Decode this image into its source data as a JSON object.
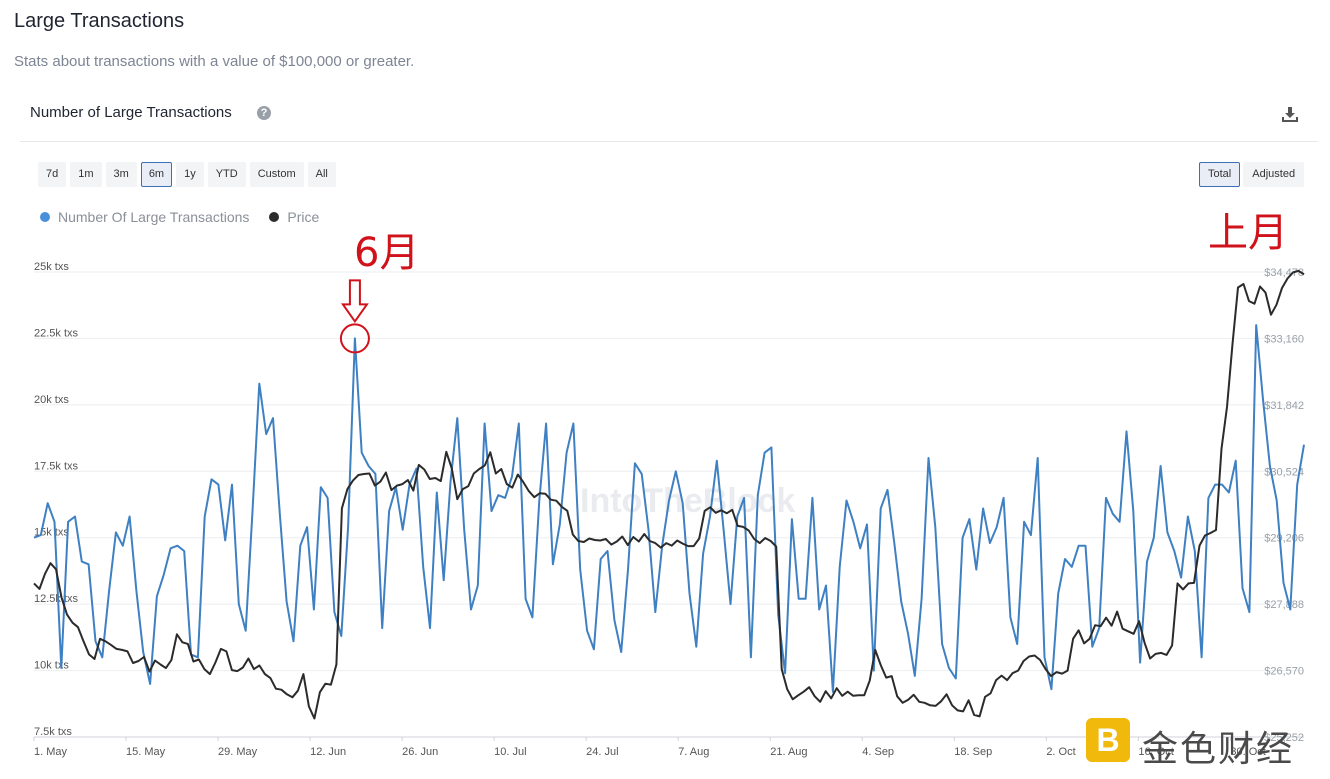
{
  "header": {
    "title": "Large Transactions",
    "subtitle": "Stats about transactions with a value of $100,000 or greater."
  },
  "card": {
    "title": "Number of Large Transactions",
    "help_symbol": "?"
  },
  "range_buttons": [
    "7d",
    "1m",
    "3m",
    "6m",
    "1y",
    "YTD",
    "Custom",
    "All"
  ],
  "range_selected": "6m",
  "mode_buttons": [
    "Total",
    "Adjusted"
  ],
  "mode_selected": "Total",
  "watermark": {
    "site": "IntoTheBlock",
    "brand": "金色财经"
  },
  "colors": {
    "transactions": "#3f80c3",
    "price": "#2b2b2b",
    "annotation": "#d0121b",
    "legend_tx_dot": "#4a90d9"
  },
  "chart_data": {
    "type": "line",
    "title": "Number of Large Transactions",
    "x_ticks": [
      "1. May",
      "15. May",
      "29. May",
      "12. Jun",
      "26. Jun",
      "10. Jul",
      "24. Jul",
      "7. Aug",
      "21. Aug",
      "4. Sep",
      "18. Sep",
      "2. Oct",
      "16. Oct",
      "30. Oct"
    ],
    "y_left_ticks": [
      "7.5k txs",
      "10k txs",
      "12.5k txs",
      "15k txs",
      "17.5k txs",
      "20k txs",
      "22.5k txs",
      "25k txs"
    ],
    "y_left_range": [
      7500,
      25000
    ],
    "y_right_ticks": [
      "$25,252",
      "$26,570",
      "$27,888",
      "$29,206",
      "$30,524",
      "$31,842",
      "$33,160",
      "$34,478"
    ],
    "y_right_range": [
      25252,
      34478
    ],
    "legend_position": "top-left",
    "grid": true,
    "annotations": [
      {
        "label": "6月",
        "near": "22 Jun"
      },
      {
        "label": "上月",
        "near": "Oct"
      }
    ],
    "series": [
      {
        "name": "Number Of Large Transactions",
        "axis": "left",
        "values": [
          15000,
          15100,
          16300,
          15600,
          10100,
          15600,
          15800,
          14100,
          14000,
          11100,
          10500,
          13000,
          15200,
          14700,
          15800,
          13000,
          10700,
          9500,
          12800,
          13600,
          14600,
          14700,
          14500,
          10600,
          10500,
          15800,
          17200,
          17000,
          14900,
          17000,
          12500,
          11500,
          16000,
          20800,
          18900,
          19500,
          15900,
          12600,
          11100,
          14700,
          15400,
          12300,
          16900,
          16500,
          12200,
          11300,
          15400,
          22500,
          18200,
          17700,
          17400,
          11600,
          16000,
          16900,
          15300,
          17000,
          17600,
          13900,
          11600,
          16700,
          13400,
          17100,
          19500,
          15300,
          12300,
          13200,
          19300,
          16000,
          16600,
          16500,
          17300,
          19300,
          12700,
          12000,
          16400,
          19300,
          14000,
          15500,
          18200,
          19300,
          13800,
          11500,
          10800,
          14200,
          14500,
          11900,
          10700,
          13800,
          17800,
          17400,
          15300,
          12200,
          14700,
          16400,
          17500,
          16300,
          12900,
          10900,
          14400,
          15800,
          17900,
          15300,
          12500,
          15800,
          16500,
          10500,
          16600,
          18200,
          18400,
          12100,
          9900,
          15700,
          12700,
          12700,
          16500,
          12300,
          13200,
          9200,
          13900,
          16400,
          15600,
          14600,
          15500,
          10000,
          16100,
          16800,
          14800,
          12600,
          11400,
          9800,
          12700,
          18000,
          15400,
          11000,
          10100,
          9700,
          15000,
          15700,
          13800,
          16100,
          14800,
          15400,
          16500,
          12000,
          11000,
          15600,
          15100,
          18000,
          10500,
          9300,
          12900,
          14200,
          13900,
          14700,
          14700,
          10900,
          11600,
          16500,
          15900,
          15600,
          19000,
          16000,
          10300,
          14100,
          15000,
          17700,
          15200,
          14500,
          13500,
          15800,
          14500,
          10500,
          16500,
          17000,
          17000,
          16700,
          17900,
          13100,
          12200,
          23000,
          20200,
          17700,
          16400,
          13300,
          12300,
          17000,
          18500
        ]
      },
      {
        "name": "Price",
        "axis": "right",
        "values": [
          28300,
          28190,
          28490,
          28700,
          28580,
          28020,
          27680,
          27520,
          27430,
          27150,
          26890,
          26800,
          27200,
          27150,
          27080,
          27000,
          26980,
          26950,
          26720,
          26760,
          26840,
          26550,
          26770,
          26690,
          26620,
          26780,
          27290,
          27130,
          27100,
          26750,
          26790,
          26600,
          26500,
          26730,
          27000,
          26950,
          26580,
          26560,
          26630,
          26810,
          26600,
          26670,
          26500,
          26420,
          26210,
          26190,
          26100,
          26040,
          26170,
          26500,
          25860,
          25620,
          26140,
          26310,
          26290,
          26690,
          29790,
          30170,
          30340,
          30450,
          30470,
          30480,
          30240,
          30320,
          30500,
          30150,
          30240,
          30270,
          30350,
          30140,
          30650,
          30560,
          30370,
          30390,
          30330,
          30910,
          30580,
          29970,
          30170,
          30230,
          30480,
          30570,
          30640,
          30900,
          30480,
          30570,
          30270,
          30200,
          30460,
          30310,
          30130,
          30010,
          30090,
          30080,
          29960,
          29940,
          29820,
          29740,
          29270,
          29140,
          29120,
          29190,
          29160,
          29150,
          29180,
          29070,
          29130,
          29230,
          29060,
          29220,
          29130,
          29280,
          29140,
          29100,
          29010,
          29100,
          29050,
          29150,
          29090,
          29040,
          29040,
          29190,
          29740,
          29810,
          29700,
          29750,
          29690,
          29760,
          29440,
          29420,
          29350,
          29180,
          29100,
          29200,
          29140,
          29030,
          26600,
          26200,
          26000,
          26080,
          26150,
          26240,
          26060,
          25950,
          26160,
          26020,
          26220,
          26070,
          26150,
          26070,
          26080,
          26080,
          26370,
          26980,
          26680,
          26430,
          26460,
          26060,
          25930,
          25990,
          26090,
          25950,
          25930,
          25880,
          25870,
          25960,
          26100,
          25880,
          25780,
          25760,
          25980,
          25690,
          25660,
          26050,
          26120,
          26380,
          26470,
          26380,
          26520,
          26570,
          26760,
          26850,
          26870,
          26780,
          26600,
          26460,
          26540,
          26510,
          26570,
          27200,
          27370,
          27110,
          27200,
          27470,
          27450,
          27620,
          27460,
          27740,
          27400,
          27350,
          27300,
          27550,
          27120,
          26810,
          26900,
          26920,
          26880,
          27070,
          28300,
          28180,
          28300,
          28310,
          29050,
          29250,
          29300,
          29360,
          30970,
          31800,
          33050,
          34170,
          34240,
          33900,
          33850,
          34190,
          34070,
          33630,
          33830,
          34160,
          34350,
          34470,
          34500,
          34430
        ]
      }
    ]
  }
}
